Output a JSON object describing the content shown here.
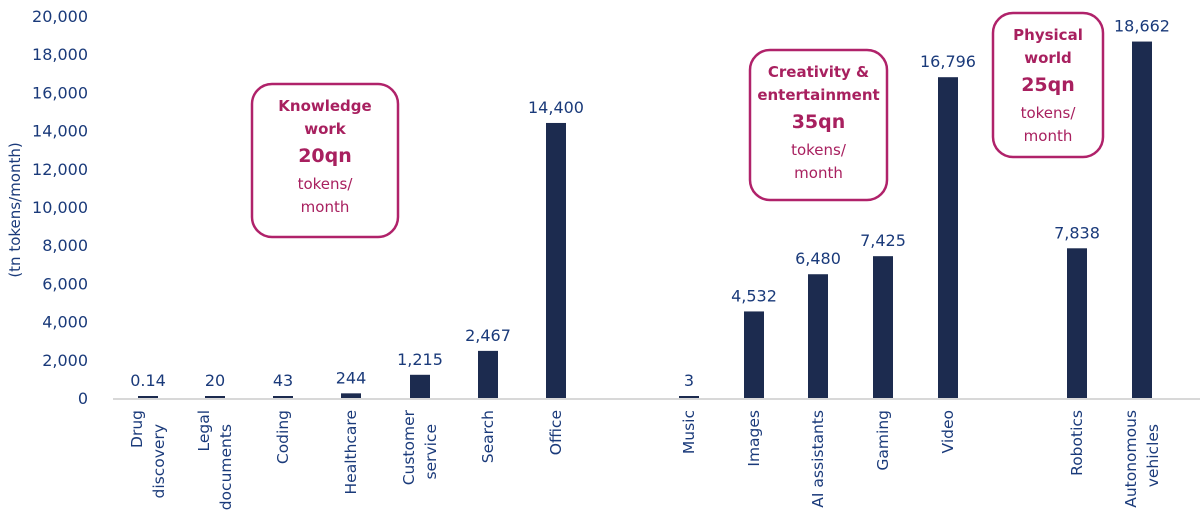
{
  "chart_data": {
    "type": "bar",
    "ylabel": "(tn tokens/month)",
    "ylim": [
      0,
      20000
    ],
    "yticks": [
      "0",
      "2,000",
      "4,000",
      "6,000",
      "8,000",
      "10,000",
      "12,000",
      "14,000",
      "16,000",
      "18,000",
      "20,000"
    ],
    "grid": false,
    "bar_color": "#1c2b4f",
    "categories": [
      {
        "label": [
          "Drug",
          "discovery"
        ],
        "value": 0.14,
        "value_label": "0.14",
        "group": 0
      },
      {
        "label": [
          "Legal",
          "documents"
        ],
        "value": 20,
        "value_label": "20",
        "group": 0
      },
      {
        "label": [
          "Coding"
        ],
        "value": 43,
        "value_label": "43",
        "group": 0
      },
      {
        "label": [
          "Healthcare"
        ],
        "value": 244,
        "value_label": "244",
        "group": 0
      },
      {
        "label": [
          "Customer",
          "service"
        ],
        "value": 1215,
        "value_label": "1,215",
        "group": 0
      },
      {
        "label": [
          "Search"
        ],
        "value": 2467,
        "value_label": "2,467",
        "group": 0
      },
      {
        "label": [
          "Office"
        ],
        "value": 14400,
        "value_label": "14,400",
        "group": 0
      },
      {
        "label": [
          "Music"
        ],
        "value": 3,
        "value_label": "3",
        "group": 1
      },
      {
        "label": [
          "Images"
        ],
        "value": 4532,
        "value_label": "4,532",
        "group": 1
      },
      {
        "label": [
          "AI assistants"
        ],
        "value": 6480,
        "value_label": "6,480",
        "group": 1
      },
      {
        "label": [
          "Gaming"
        ],
        "value": 7425,
        "value_label": "7,425",
        "group": 1
      },
      {
        "label": [
          "Video"
        ],
        "value": 16796,
        "value_label": "16,796",
        "group": 1
      },
      {
        "label": [
          "Robotics"
        ],
        "value": 7838,
        "value_label": "7,838",
        "group": 2
      },
      {
        "label": [
          "Autonomous",
          "vehicles"
        ],
        "value": 18662,
        "value_label": "18,662",
        "group": 2
      }
    ],
    "annotations": [
      {
        "title": [
          "Knowledge",
          "work"
        ],
        "total": "20qn",
        "unit": [
          "tokens/",
          "month"
        ]
      },
      {
        "title": [
          "Creativity &",
          "entertainment"
        ],
        "total": "35qn",
        "unit": [
          "tokens/",
          "month"
        ]
      },
      {
        "title": [
          "Physical",
          "world"
        ],
        "total": "25qn",
        "unit": [
          "tokens/",
          "month"
        ]
      }
    ],
    "annotation_color": "#b0226a"
  }
}
